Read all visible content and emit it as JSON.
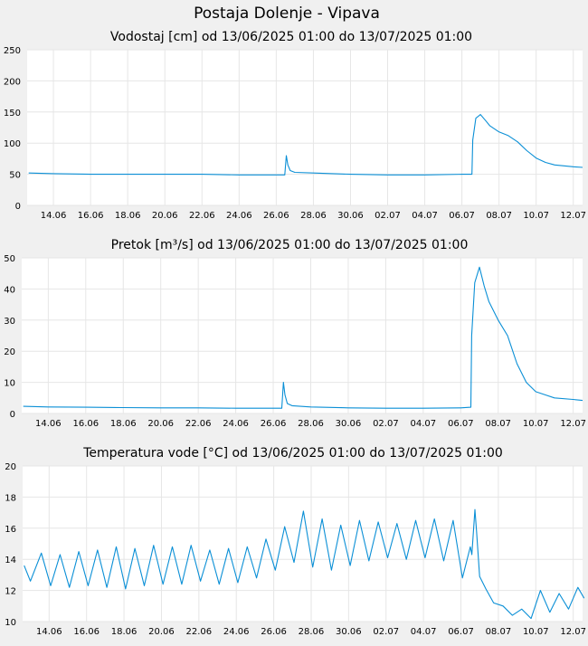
{
  "page": {
    "title": "Postaja Dolenje - Vipava",
    "background": "#f0f0f0"
  },
  "chart_data": [
    {
      "type": "line",
      "title": "Vodostaj [cm] od 13/06/2025 01:00 do 13/07/2025 01:00",
      "xlabel": "",
      "ylabel": "",
      "x_range": [
        "2025-06-12T14:00",
        "2025-07-12T12:00"
      ],
      "ylim": [
        0,
        250
      ],
      "yticks": [
        0,
        50,
        100,
        150,
        200,
        250
      ],
      "xticks": [
        "14.06",
        "16.06",
        "18.06",
        "20.06",
        "22.06",
        "24.06",
        "26.06",
        "28.06",
        "30.06",
        "02.07",
        "04.07",
        "06.07",
        "08.07",
        "10.07",
        "12.07"
      ],
      "grid": true,
      "color": "#0a8fd6",
      "series": [
        {
          "x": [
            "2025-06-12T16:00",
            "2025-06-14T00:00",
            "2025-06-16T00:00",
            "2025-06-18T00:00",
            "2025-06-20T00:00",
            "2025-06-22T00:00",
            "2025-06-24T00:00",
            "2025-06-26T00:00",
            "2025-06-26T11:00",
            "2025-06-26T13:00",
            "2025-06-26T15:00",
            "2025-06-26T18:00",
            "2025-06-27T00:00",
            "2025-06-28T00:00",
            "2025-06-30T00:00",
            "2025-07-02T00:00",
            "2025-07-04T00:00",
            "2025-07-06T00:00",
            "2025-07-06T13:00",
            "2025-07-06T14:00",
            "2025-07-06T18:00",
            "2025-07-07T00:00",
            "2025-07-07T06:00",
            "2025-07-07T12:00",
            "2025-07-08T00:00",
            "2025-07-08T12:00",
            "2025-07-09T00:00",
            "2025-07-09T12:00",
            "2025-07-10T00:00",
            "2025-07-10T12:00",
            "2025-07-11T00:00",
            "2025-07-12T00:00",
            "2025-07-12T12:00"
          ],
          "y": [
            52,
            51,
            50,
            50,
            50,
            50,
            49,
            49,
            49,
            80,
            65,
            56,
            53,
            52,
            50,
            49,
            49,
            50,
            50,
            105,
            140,
            146,
            137,
            128,
            118,
            112,
            102,
            88,
            76,
            69,
            65,
            62,
            61
          ]
        }
      ]
    },
    {
      "type": "line",
      "title": "Pretok [m³/s] od 13/06/2025 01:00 do 13/07/2025 01:00",
      "xlabel": "",
      "ylabel": "",
      "x_range": [
        "2025-06-12T14:00",
        "2025-07-12T12:00"
      ],
      "ylim": [
        0,
        50
      ],
      "yticks": [
        0,
        10,
        20,
        30,
        40,
        50
      ],
      "xticks": [
        "14.06",
        "16.06",
        "18.06",
        "20.06",
        "22.06",
        "24.06",
        "26.06",
        "28.06",
        "30.06",
        "02.07",
        "04.07",
        "06.07",
        "08.07",
        "10.07",
        "12.07"
      ],
      "grid": true,
      "color": "#0a8fd6",
      "series": [
        {
          "x": [
            "2025-06-12T16:00",
            "2025-06-14T00:00",
            "2025-06-16T00:00",
            "2025-06-18T00:00",
            "2025-06-20T00:00",
            "2025-06-22T00:00",
            "2025-06-24T00:00",
            "2025-06-26T00:00",
            "2025-06-26T11:00",
            "2025-06-26T13:00",
            "2025-06-26T15:00",
            "2025-06-26T18:00",
            "2025-06-27T00:00",
            "2025-06-28T00:00",
            "2025-06-30T00:00",
            "2025-07-02T00:00",
            "2025-07-04T00:00",
            "2025-07-06T00:00",
            "2025-07-06T13:00",
            "2025-07-06T14:00",
            "2025-07-06T18:00",
            "2025-07-07T00:00",
            "2025-07-07T06:00",
            "2025-07-07T12:00",
            "2025-07-08T00:00",
            "2025-07-08T12:00",
            "2025-07-09T00:00",
            "2025-07-09T12:00",
            "2025-07-10T00:00",
            "2025-07-10T12:00",
            "2025-07-11T00:00",
            "2025-07-12T00:00",
            "2025-07-12T12:00"
          ],
          "y": [
            2.3,
            2.1,
            2.0,
            1.9,
            1.8,
            1.8,
            1.7,
            1.7,
            1.7,
            10,
            6,
            3.2,
            2.5,
            2.1,
            1.8,
            1.7,
            1.7,
            1.8,
            2,
            25,
            42,
            47,
            41,
            36,
            30,
            25,
            16,
            10,
            7,
            6,
            5,
            4.5,
            4.2
          ]
        }
      ]
    },
    {
      "type": "line",
      "title": "Temperatura vode [°C] od 13/06/2025 01:00 do 13/07/2025 01:00",
      "xlabel": "",
      "ylabel": "",
      "x_range": [
        "2025-06-12T14:00",
        "2025-07-12T12:00"
      ],
      "ylim": [
        10,
        20
      ],
      "yticks": [
        10,
        12,
        14,
        16,
        18,
        20
      ],
      "xticks": [
        "14.06",
        "16.06",
        "18.06",
        "20.06",
        "22.06",
        "24.06",
        "26.06",
        "28.06",
        "30.06",
        "02.07",
        "04.07",
        "06.07",
        "08.07",
        "10.07",
        "12.07"
      ],
      "grid": true,
      "color": "#0a8fd6",
      "series": [
        {
          "x": [
            "2025-06-12T16:00",
            "2025-06-13T00:00",
            "2025-06-13T14:00",
            "2025-06-14T02:00",
            "2025-06-14T14:00",
            "2025-06-15T02:00",
            "2025-06-15T14:00",
            "2025-06-16T02:00",
            "2025-06-16T14:00",
            "2025-06-17T02:00",
            "2025-06-17T14:00",
            "2025-06-18T02:00",
            "2025-06-18T14:00",
            "2025-06-19T02:00",
            "2025-06-19T14:00",
            "2025-06-20T02:00",
            "2025-06-20T14:00",
            "2025-06-21T02:00",
            "2025-06-21T14:00",
            "2025-06-22T02:00",
            "2025-06-22T14:00",
            "2025-06-23T02:00",
            "2025-06-23T14:00",
            "2025-06-24T02:00",
            "2025-06-24T14:00",
            "2025-06-25T02:00",
            "2025-06-25T14:00",
            "2025-06-26T02:00",
            "2025-06-26T14:00",
            "2025-06-27T02:00",
            "2025-06-27T14:00",
            "2025-06-28T02:00",
            "2025-06-28T14:00",
            "2025-06-29T02:00",
            "2025-06-29T14:00",
            "2025-06-30T02:00",
            "2025-06-30T14:00",
            "2025-07-01T02:00",
            "2025-07-01T14:00",
            "2025-07-02T02:00",
            "2025-07-02T14:00",
            "2025-07-03T02:00",
            "2025-07-03T14:00",
            "2025-07-04T02:00",
            "2025-07-04T14:00",
            "2025-07-05T02:00",
            "2025-07-05T14:00",
            "2025-07-06T02:00",
            "2025-07-06T12:00",
            "2025-07-06T14:00",
            "2025-07-06T18:00",
            "2025-07-06T20:00",
            "2025-07-07T00:00",
            "2025-07-07T08:00",
            "2025-07-07T18:00",
            "2025-07-08T06:00",
            "2025-07-08T18:00",
            "2025-07-09T06:00",
            "2025-07-09T18:00",
            "2025-07-10T06:00",
            "2025-07-10T18:00",
            "2025-07-11T06:00",
            "2025-07-11T18:00",
            "2025-07-12T06:00",
            "2025-07-12T14:00"
          ],
          "y": [
            13.6,
            12.6,
            14.4,
            12.3,
            14.3,
            12.2,
            14.5,
            12.3,
            14.6,
            12.2,
            14.8,
            12.1,
            14.7,
            12.3,
            14.9,
            12.4,
            14.8,
            12.4,
            14.9,
            12.6,
            14.6,
            12.4,
            14.7,
            12.5,
            14.8,
            12.8,
            15.3,
            13.3,
            16.1,
            13.8,
            17.1,
            13.5,
            16.6,
            13.3,
            16.2,
            13.6,
            16.5,
            13.9,
            16.4,
            14.1,
            16.3,
            14.0,
            16.5,
            14.1,
            16.6,
            13.9,
            16.5,
            12.8,
            14.8,
            14.3,
            17.2,
            15.8,
            12.9,
            12.1,
            11.2,
            11.0,
            10.4,
            10.8,
            10.2,
            12.0,
            10.6,
            11.8,
            10.8,
            12.2,
            11.5
          ]
        }
      ]
    }
  ]
}
